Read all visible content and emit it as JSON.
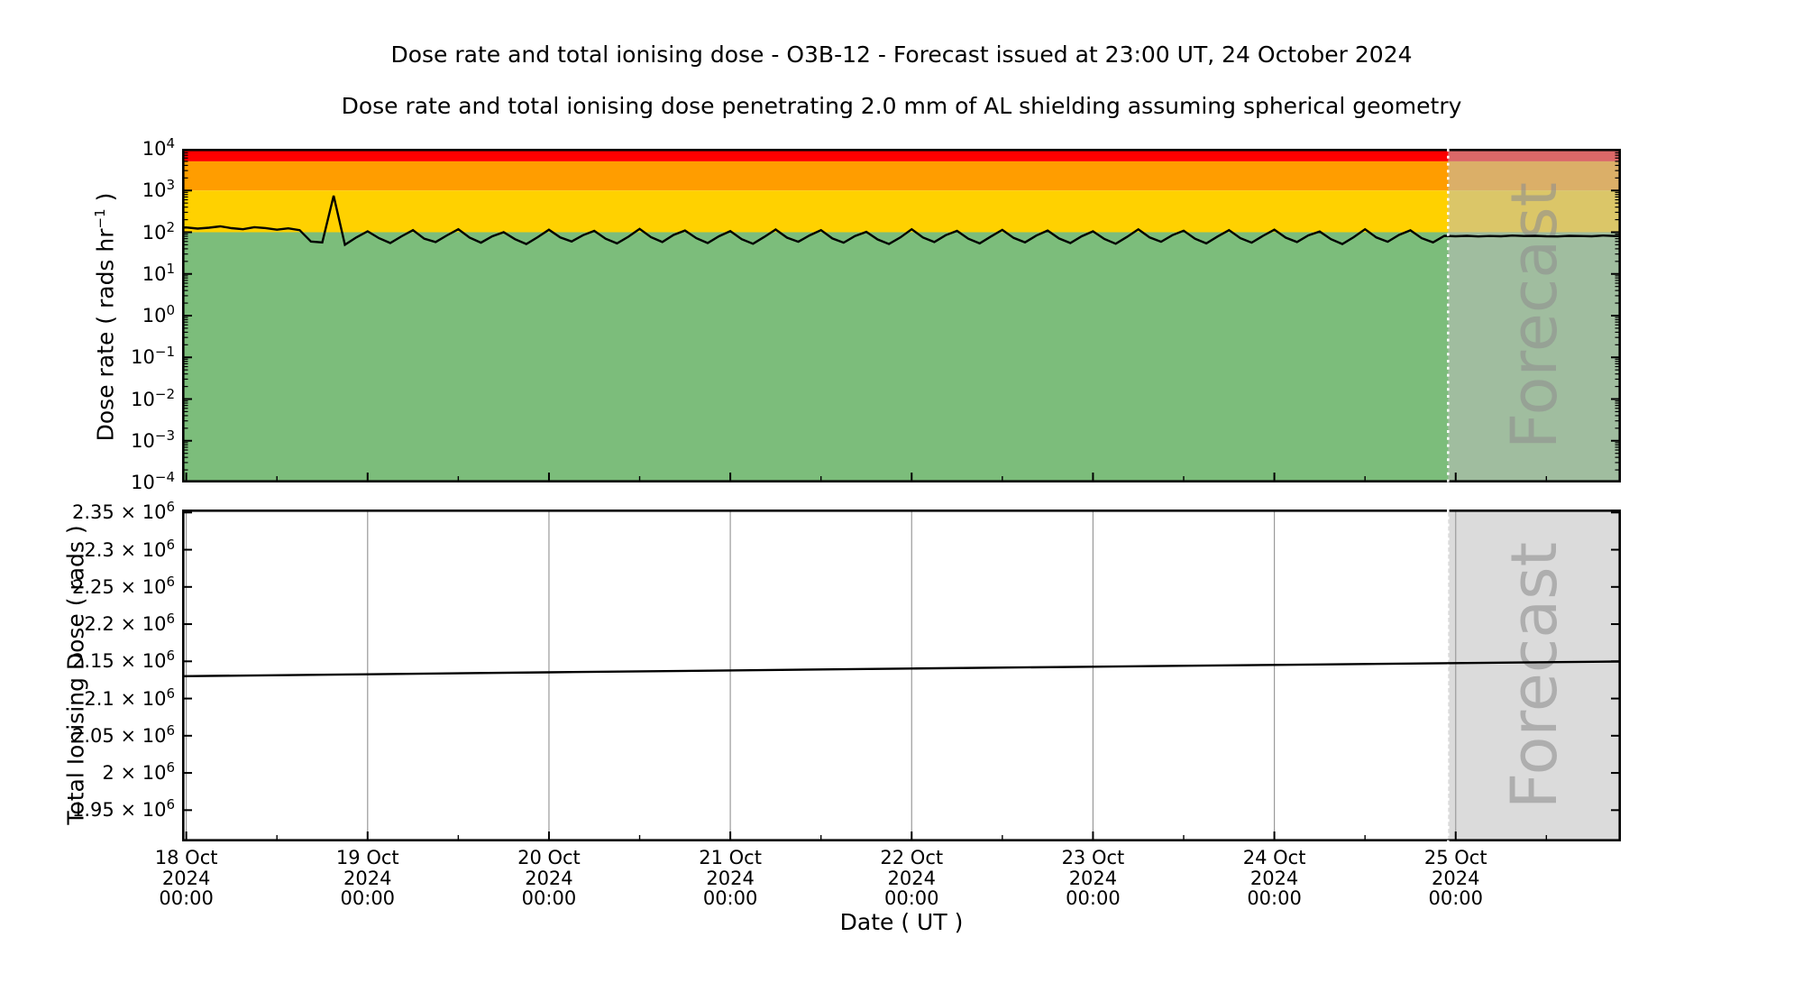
{
  "figure": {
    "title": "Dose rate and total ionising dose - O3B-12 - Forecast issued at 23:00 UT, 24 October 2024",
    "subtitle": "Dose rate and total ionising dose penetrating 2.0 mm of AL shielding assuming spherical geometry"
  },
  "axes": {
    "x_label": "Date ( UT )",
    "dose_rate_label": "Dose rate ( rads hr^{−1} )",
    "tid_label": "Total Ionising Dose ( rads )"
  },
  "watermark": "Forecast",
  "colors": {
    "band_red": "#fe0000",
    "band_orange": "#ff9d00",
    "band_yellow": "#ffd100",
    "band_green": "#7cbd7b",
    "forecast_overlay": "#bebebe",
    "forecast_overlay_alpha": 0.55,
    "watermark": "#8f8f8f",
    "grid": "#9a9a9a",
    "divider": "#ffffff",
    "line": "#000000",
    "frame": "#000000"
  },
  "chart_data": [
    {
      "type": "line",
      "name": "dose-rate",
      "ylabel": "Dose rate ( rads hr^{−1} )",
      "yscale": "log",
      "ylim": [
        0.0001,
        10000
      ],
      "xlim_days": [
        -0.023,
        7.911
      ],
      "x_epoch_label": "days after 18 Oct 2024 00:00 UT",
      "forecast_start_days": 6.958,
      "x_minor_step_days": 0.5,
      "bands": [
        {
          "name": "red",
          "min": 5000,
          "max": 10000,
          "color": "#fe0000"
        },
        {
          "name": "orange",
          "min": 1000,
          "max": 5000,
          "color": "#ff9d00"
        },
        {
          "name": "yellow",
          "min": 100,
          "max": 1000,
          "color": "#ffd100"
        },
        {
          "name": "green",
          "min": 0.0001,
          "max": 100,
          "color": "#7cbd7b"
        }
      ],
      "yticks": [
        {
          "v": 10000,
          "label": "10^{4}"
        },
        {
          "v": 1000,
          "label": "10^{3}"
        },
        {
          "v": 100,
          "label": "10^{2}"
        },
        {
          "v": 10,
          "label": "10^{1}"
        },
        {
          "v": 1,
          "label": "10^{0}"
        },
        {
          "v": 0.1,
          "label": "10^{−1}"
        },
        {
          "v": 0.01,
          "label": "10^{−2}"
        },
        {
          "v": 0.001,
          "label": "10^{−3}"
        },
        {
          "v": 0.0001,
          "label": "10^{−4}"
        }
      ],
      "series": {
        "units": "rads/hr",
        "t_start": -0.0625,
        "dt_days": 0.0625,
        "values": [
          128,
          130,
          122,
          128,
          138,
          125,
          118,
          132,
          126,
          115,
          124,
          112,
          60,
          57,
          750,
          50,
          75,
          105,
          72,
          55,
          80,
          112,
          70,
          58,
          84,
          118,
          74,
          56,
          80,
          100,
          68,
          52,
          76,
          115,
          75,
          60,
          85,
          108,
          70,
          54,
          78,
          120,
          76,
          58,
          86,
          110,
          72,
          55,
          80,
          106,
          68,
          53,
          77,
          116,
          74,
          59,
          84,
          112,
          71,
          56,
          81,
          102,
          67,
          52,
          75,
          118,
          75,
          58,
          85,
          108,
          70,
          54,
          79,
          114,
          73,
          57,
          83,
          110,
          71,
          55,
          80,
          105,
          69,
          53,
          77,
          117,
          75,
          59,
          85,
          109,
          70,
          54,
          79,
          112,
          72,
          56,
          82,
          115,
          74,
          58,
          84,
          104,
          68,
          52,
          76,
          118,
          75,
          59,
          86,
          111,
          72,
          57,
          82,
          80,
          82,
          79,
          81,
          80,
          83,
          81,
          82,
          80,
          79,
          82,
          81,
          80,
          83,
          81,
          80
        ]
      }
    },
    {
      "type": "line",
      "name": "total-ionising-dose",
      "ylabel": "Total Ionising Dose ( rads )",
      "yscale": "linear",
      "ylim": [
        1908000,
        2354000
      ],
      "xlim_days": [
        -0.023,
        7.911
      ],
      "forecast_start_days": 6.958,
      "x_minor_step_days": 0.5,
      "grid_days": [
        0,
        1,
        2,
        3,
        4,
        5,
        6,
        7
      ],
      "yticks": [
        {
          "v": 2350000,
          "label": "2.35 × 10^{6}"
        },
        {
          "v": 2300000,
          "label": "2.3 × 10^{6}"
        },
        {
          "v": 2250000,
          "label": "2.25 × 10^{6}"
        },
        {
          "v": 2200000,
          "label": "2.2 × 10^{6}"
        },
        {
          "v": 2150000,
          "label": "2.15 × 10^{6}"
        },
        {
          "v": 2100000,
          "label": "2.1 × 10^{6}"
        },
        {
          "v": 2050000,
          "label": "2.05 × 10^{6}"
        },
        {
          "v": 2000000,
          "label": "2 × 10^{6}"
        },
        {
          "v": 1950000,
          "label": "1.95 × 10^{6}"
        }
      ],
      "series": {
        "units": "rads",
        "t": [
          -0.023,
          1,
          2,
          3,
          4,
          5,
          6,
          7,
          7.911
        ],
        "values": [
          2130000,
          2132600,
          2135200,
          2137800,
          2140300,
          2142800,
          2145200,
          2147600,
          2149800
        ]
      }
    }
  ],
  "xticks": [
    {
      "t": 0,
      "lines": [
        "18 Oct",
        "2024",
        "00:00"
      ]
    },
    {
      "t": 1,
      "lines": [
        "19 Oct",
        "2024",
        "00:00"
      ]
    },
    {
      "t": 2,
      "lines": [
        "20 Oct",
        "2024",
        "00:00"
      ]
    },
    {
      "t": 3,
      "lines": [
        "21 Oct",
        "2024",
        "00:00"
      ]
    },
    {
      "t": 4,
      "lines": [
        "22 Oct",
        "2024",
        "00:00"
      ]
    },
    {
      "t": 5,
      "lines": [
        "23 Oct",
        "2024",
        "00:00"
      ]
    },
    {
      "t": 6,
      "lines": [
        "24 Oct",
        "2024",
        "00:00"
      ]
    },
    {
      "t": 7,
      "lines": [
        "25 Oct",
        "2024",
        "00:00"
      ]
    }
  ]
}
